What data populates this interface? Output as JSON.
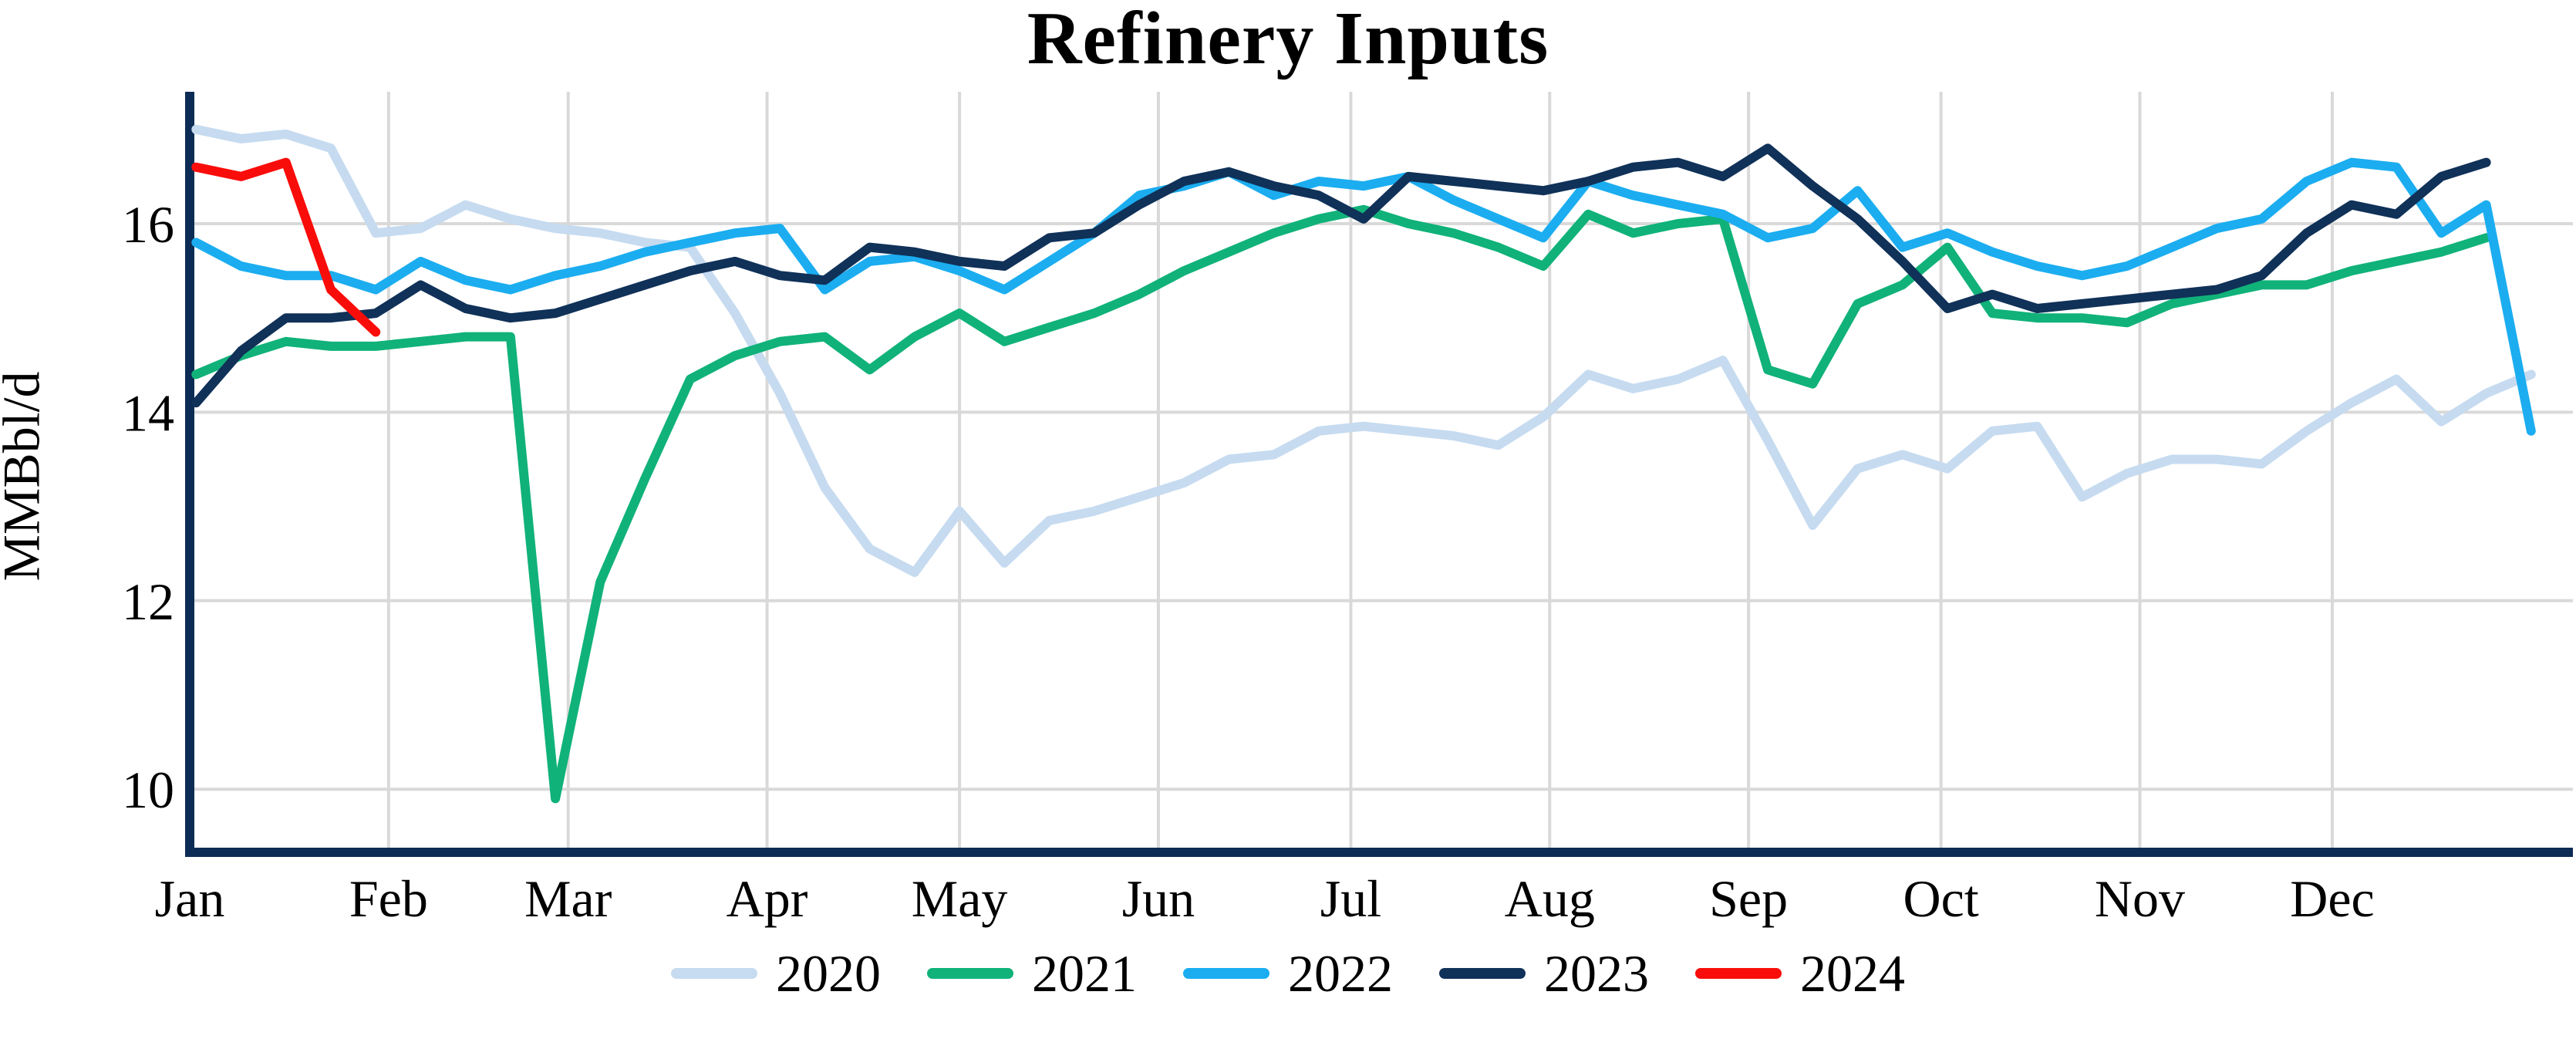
{
  "title": "Refinery Inputs",
  "chart_data": {
    "type": "line",
    "title": "Refinery Inputs",
    "xlabel": "",
    "ylabel": "MMBbl/d",
    "x_unit": "weekly data, Jan through Dec",
    "x_tick_labels": [
      "Jan",
      "Feb",
      "Mar",
      "Apr",
      "May",
      "Jun",
      "Jul",
      "Aug",
      "Sep",
      "Oct",
      "Nov",
      "Dec"
    ],
    "yticks": [
      10,
      12,
      14,
      16
    ],
    "ylim": [
      9.35,
      17.4
    ],
    "grid": true,
    "legend_position": "bottom center",
    "series": [
      {
        "name": "2020",
        "color": "#c6dbf0",
        "values": [
          17.0,
          16.9,
          16.95,
          16.8,
          15.9,
          15.95,
          16.2,
          16.05,
          15.95,
          15.9,
          15.8,
          15.75,
          15.05,
          14.2,
          13.2,
          12.55,
          12.3,
          12.95,
          12.4,
          12.85,
          12.95,
          13.1,
          13.25,
          13.5,
          13.55,
          13.8,
          13.85,
          13.8,
          13.75,
          13.65,
          13.95,
          14.4,
          14.25,
          14.35,
          14.55,
          13.7,
          12.8,
          13.4,
          13.55,
          13.4,
          13.8,
          13.85,
          13.1,
          13.35,
          13.5,
          13.5,
          13.45,
          13.8,
          14.1,
          14.35,
          13.9,
          14.2,
          14.4
        ]
      },
      {
        "name": "2021",
        "color": "#10b279",
        "values": [
          14.4,
          14.6,
          14.75,
          14.7,
          14.7,
          14.75,
          14.8,
          14.8,
          9.9,
          12.2,
          13.3,
          14.35,
          14.6,
          14.75,
          14.8,
          14.45,
          14.8,
          15.05,
          14.75,
          14.9,
          15.05,
          15.25,
          15.5,
          15.7,
          15.9,
          16.05,
          16.15,
          16.0,
          15.9,
          15.75,
          15.55,
          16.1,
          15.9,
          16.0,
          16.05,
          14.45,
          14.3,
          15.15,
          15.35,
          15.75,
          15.05,
          15.0,
          15.0,
          14.95,
          15.15,
          15.25,
          15.35,
          15.35,
          15.5,
          15.6,
          15.7,
          15.85
        ]
      },
      {
        "name": "2022",
        "color": "#1badf0",
        "values": [
          15.8,
          15.55,
          15.45,
          15.45,
          15.3,
          15.6,
          15.4,
          15.3,
          15.45,
          15.55,
          15.7,
          15.8,
          15.9,
          15.95,
          15.3,
          15.6,
          15.65,
          15.5,
          15.3,
          15.6,
          15.9,
          16.3,
          16.4,
          16.55,
          16.3,
          16.45,
          16.4,
          16.5,
          16.25,
          16.05,
          15.85,
          16.45,
          16.3,
          16.2,
          16.1,
          15.85,
          15.95,
          16.35,
          15.75,
          15.9,
          15.7,
          15.55,
          15.45,
          15.55,
          15.75,
          15.95,
          16.05,
          16.45,
          16.65,
          16.6,
          15.9,
          16.2,
          13.8
        ]
      },
      {
        "name": "2023",
        "color": "#103158",
        "values": [
          14.1,
          14.65,
          15.0,
          15.0,
          15.05,
          15.35,
          15.1,
          15.0,
          15.05,
          15.2,
          15.35,
          15.5,
          15.6,
          15.45,
          15.4,
          15.75,
          15.7,
          15.6,
          15.55,
          15.85,
          15.9,
          16.2,
          16.45,
          16.55,
          16.4,
          16.3,
          16.05,
          16.5,
          16.45,
          16.4,
          16.35,
          16.45,
          16.6,
          16.65,
          16.5,
          16.8,
          16.4,
          16.05,
          15.6,
          15.1,
          15.25,
          15.1,
          15.15,
          15.2,
          15.25,
          15.3,
          15.45,
          15.9,
          16.2,
          16.1,
          16.5,
          16.65
        ]
      },
      {
        "name": "2024",
        "color": "#f90d0a",
        "values": [
          16.6,
          16.5,
          16.65,
          15.3,
          14.85
        ]
      }
    ]
  },
  "colors": {
    "axis_spine": "#0d2c55",
    "gridline": "#d9d9d9",
    "background": "#ffffff",
    "text": "#000000"
  }
}
